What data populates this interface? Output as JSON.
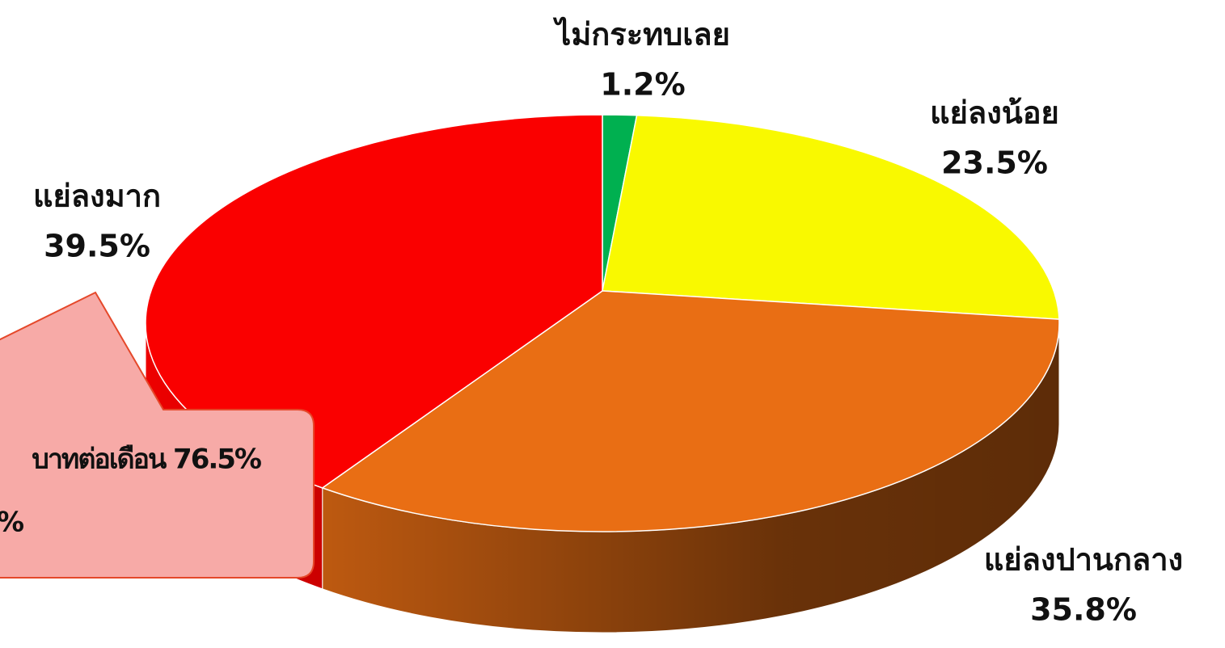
{
  "chart_data": {
    "type": "pie",
    "categories": [
      "ไม่กระทบเลย",
      "แย่ลงน้อย",
      "แย่ลงปานกลาง",
      "แย่ลงมาก"
    ],
    "values": [
      1.2,
      23.5,
      35.8,
      39.5
    ],
    "value_labels": [
      "1.2%",
      "23.5%",
      "35.8%",
      "39.5%"
    ],
    "colors": [
      "#00b050",
      "#f9f900",
      "#e96e14",
      "#fa0000"
    ],
    "annotations": [
      "บาทต่อเดือน 76.5%",
      "%"
    ]
  }
}
